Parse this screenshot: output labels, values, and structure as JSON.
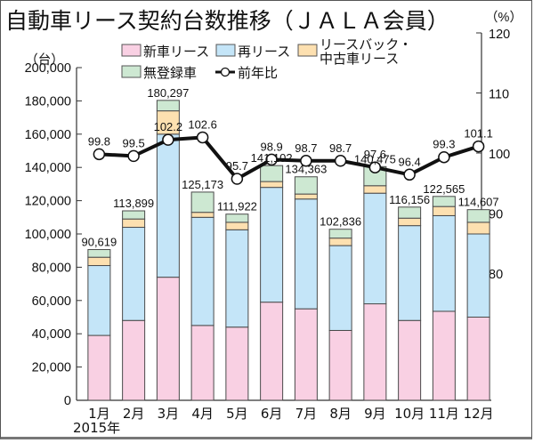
{
  "chart_data": {
    "type": "bar",
    "subtype": "stacked-bar-with-line",
    "title": "自動車リース契約台数推移（ＪＡＬＡ会員）",
    "xlabel": "",
    "ylabel": "（台）",
    "y2label": "（%）",
    "year_label": "2015年",
    "categories": [
      "1月",
      "2月",
      "3月",
      "4月",
      "5月",
      "6月",
      "7月",
      "8月",
      "9月",
      "10月",
      "11月",
      "12月"
    ],
    "ylim": [
      0,
      200000
    ],
    "y_ticks": [
      0,
      20000,
      40000,
      60000,
      80000,
      100000,
      120000,
      140000,
      160000,
      180000,
      200000
    ],
    "y_tick_labels": [
      "0",
      "20,000",
      "40,000",
      "60,000",
      "80,000",
      "100,000",
      "120,000",
      "140,000",
      "160,000",
      "180,000",
      "200,000"
    ],
    "y2lim": [
      80,
      120
    ],
    "y2_ticks": [
      80,
      90,
      100,
      110,
      120
    ],
    "y2_tick_labels": [
      "80",
      "90",
      "100",
      "110",
      "120"
    ],
    "series": [
      {
        "name": "新車リース",
        "axis": "left",
        "kind": "bar",
        "color": "#f9d0e3",
        "values": [
          39000,
          48000,
          74000,
          45000,
          44000,
          59000,
          55000,
          42000,
          58000,
          48000,
          53500,
          50000
        ]
      },
      {
        "name": "再リース",
        "axis": "left",
        "kind": "bar",
        "color": "#c4e5f8",
        "values": [
          42000,
          56000,
          86000,
          65000,
          58500,
          69000,
          66000,
          51000,
          66500,
          57000,
          57500,
          50000
        ]
      },
      {
        "name": "リースバック・中古車リース",
        "axis": "left",
        "kind": "bar",
        "color": "#fde0b0",
        "values": [
          5000,
          5000,
          14000,
          3000,
          4500,
          3500,
          3000,
          4500,
          4500,
          4500,
          5500,
          7000
        ]
      },
      {
        "name": "無登録車",
        "axis": "left",
        "kind": "bar",
        "color": "#cde8d2",
        "values": [
          4619,
          4899,
          6297,
          12173,
          4922,
          9602,
          10363,
          5336,
          11475,
          6656,
          6065,
          7607
        ]
      },
      {
        "name": "前年比",
        "axis": "right",
        "kind": "line",
        "color": "#111111",
        "values": [
          99.8,
          99.5,
          102.2,
          102.6,
          95.7,
          98.9,
          98.7,
          98.7,
          97.6,
          96.4,
          99.3,
          101.1
        ]
      }
    ],
    "totals": [
      90619,
      113899,
      180297,
      125173,
      111922,
      141102,
      134363,
      102836,
      140475,
      116156,
      122565,
      114607
    ],
    "total_labels": [
      "90,619",
      "113,899",
      "180,297",
      "125,173",
      "111,922",
      "141,102",
      "134,363",
      "102,836",
      "140,475",
      "116,156",
      "122,565",
      "114,607"
    ],
    "ratio_labels": [
      "99.8",
      "99.5",
      "102.2",
      "102.6",
      "95.7",
      "98.9",
      "98.7",
      "98.7",
      "97.6",
      "96.4",
      "99.3",
      "101.1"
    ],
    "legend": {
      "placement": "top-center",
      "items": [
        {
          "label": "新車リース",
          "type": "box",
          "color": "#f9d0e3"
        },
        {
          "label": "再リース",
          "type": "box",
          "color": "#c4e5f8"
        },
        {
          "label_lines": [
            "リースバック・",
            "中古車リース"
          ],
          "type": "box",
          "color": "#fde0b0"
        },
        {
          "label": "無登録車",
          "type": "box",
          "color": "#cde8d2"
        },
        {
          "label": "前年比",
          "type": "line-marker",
          "color": "#111111"
        }
      ]
    },
    "grid": false
  }
}
